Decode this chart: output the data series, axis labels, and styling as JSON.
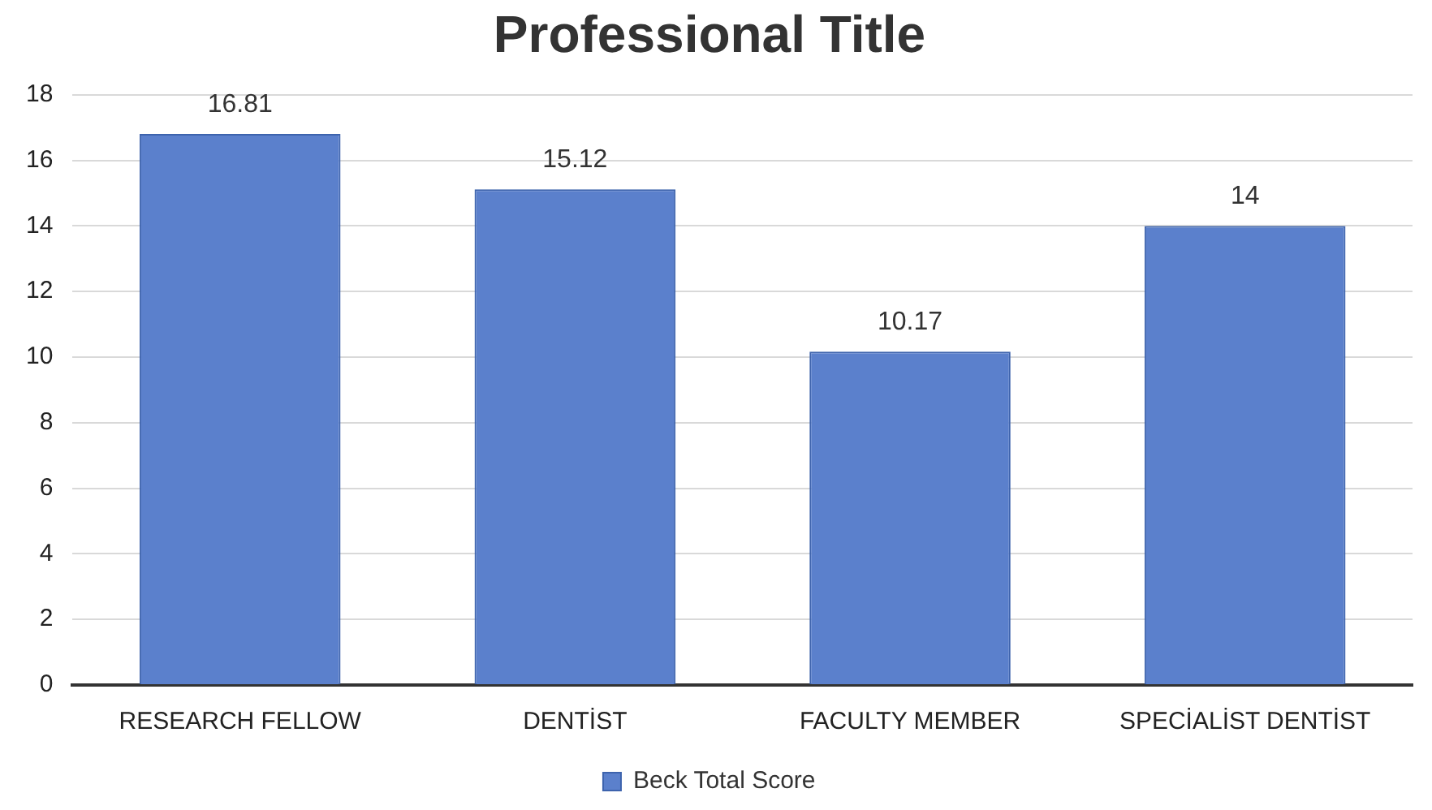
{
  "chart_data": {
    "type": "bar",
    "title": "Professional Title",
    "categories": [
      "RESEARCH FELLOW",
      "DENTİST",
      "FACULTY MEMBER",
      "SPECİALİST DENTİST"
    ],
    "series": [
      {
        "name": "Beck Total Score",
        "color": "#5b80cc",
        "values": [
          16.81,
          15.12,
          10.17,
          14
        ]
      }
    ],
    "value_labels": [
      "16.81",
      "15.12",
      "10.17",
      "14"
    ],
    "ylim": [
      0,
      18
    ],
    "yticks": [
      0,
      2,
      4,
      6,
      8,
      10,
      12,
      14,
      16,
      18
    ],
    "grid": "y",
    "legend": "bottom"
  }
}
